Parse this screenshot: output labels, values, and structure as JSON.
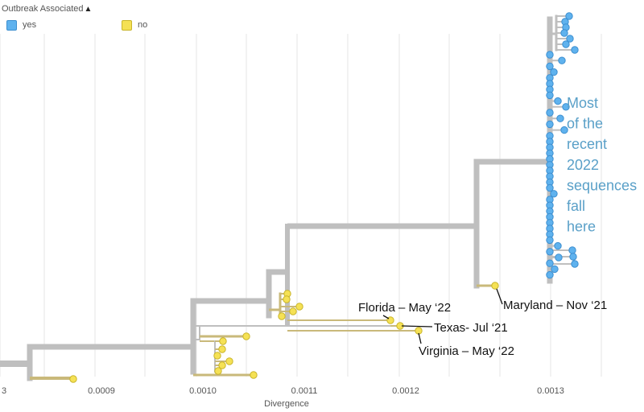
{
  "legend": {
    "title": "Outbreak Associated",
    "items": [
      {
        "label": "yes",
        "color": "#5fb2ee",
        "border": "#3d8fd0",
        "icon": "legend-swatch"
      },
      {
        "label": "no",
        "color": "#f5e155",
        "border": "#c9b52b",
        "icon": "legend-swatch"
      }
    ],
    "caret_icon": "chevron-up-icon"
  },
  "colors": {
    "branch": "#bfbfbf",
    "branch_no": "#c9b97a",
    "grid": "#e6e6e6",
    "callout_text": "#5aa0c8",
    "label_text": "#111111"
  },
  "axis": {
    "title": "Divergence",
    "ticks": [
      "3",
      "0.0009",
      "0.0010",
      "0.0011",
      "0.0012",
      "0.0013"
    ]
  },
  "callout": {
    "lines": [
      "Most",
      "of the",
      "recent",
      "2022",
      "sequences",
      "fall",
      "here"
    ]
  },
  "labels": [
    {
      "text": "Florida – May ‘22"
    },
    {
      "text": "Texas- Jul ‘21"
    },
    {
      "text": "Virginia – May ‘22"
    },
    {
      "text": "Maryland – Nov ‘21"
    }
  ]
}
